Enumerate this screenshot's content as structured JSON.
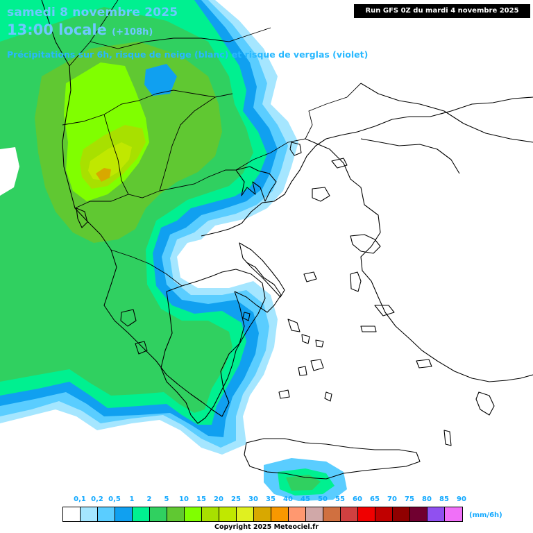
{
  "header": {
    "date": "samedi 8 novembre 2025",
    "time": "13:00 locale",
    "lead": "(+108h)",
    "description": "Précipitations sur 6h, risque de neige (blanc) et risque de verglas (violet)",
    "run": "Run GFS 0Z du mardi 4 novembre 2025"
  },
  "legend": {
    "unit": "(mm/6h)",
    "labels": [
      "0,1",
      "0,2",
      "0,5",
      "1",
      "2",
      "5",
      "10",
      "15",
      "20",
      "25",
      "30",
      "35",
      "40",
      "45",
      "50",
      "55",
      "60",
      "65",
      "70",
      "75",
      "80",
      "85",
      "90"
    ],
    "colors": [
      "#ffffff",
      "#a5e6ff",
      "#5acdff",
      "#10a0f0",
      "#00f090",
      "#30d060",
      "#60c832",
      "#80ff00",
      "#a8e000",
      "#c0e800",
      "#e0f020",
      "#d8a800",
      "#f89800",
      "#ff9870",
      "#d0a8a8",
      "#d07040",
      "#d04040",
      "#f00000",
      "#c00000",
      "#900000",
      "#700030",
      "#9050f0",
      "#f070f8"
    ]
  },
  "map": {
    "region": "Grèce et Balkans",
    "colors": {
      "very_light_blue": "#a5e6ff",
      "light_blue": "#5acdff",
      "blue": "#10a0f0",
      "cyan_green": "#00f090",
      "green": "#30d060",
      "mid_green": "#60c832",
      "lime": "#80ff00",
      "yellow_green": "#c0e800",
      "ochre": "#d8a800"
    }
  },
  "footer": {
    "copyright": "Copyright 2025 Meteociel.fr"
  }
}
